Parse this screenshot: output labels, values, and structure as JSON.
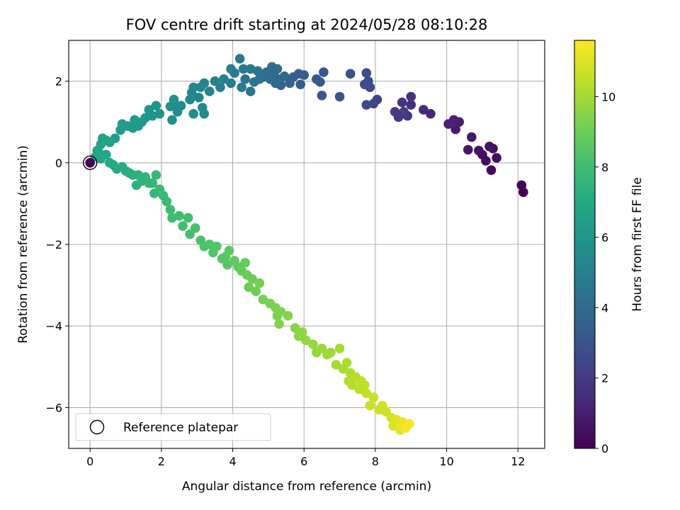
{
  "chart_data": {
    "type": "scatter",
    "title": "FOV centre drift starting at 2024/05/28 08:10:28",
    "xlabel": "Angular distance from reference (arcmin)",
    "ylabel": "Rotation from reference (arcmin)",
    "xlim": [
      -0.6,
      12.75
    ],
    "ylim": [
      -7.0,
      3.0
    ],
    "xticks": [
      0,
      2,
      4,
      6,
      8,
      10,
      12
    ],
    "yticks": [
      -6,
      -4,
      -2,
      0,
      2
    ],
    "grid": true,
    "legend": {
      "placement": "lower-left",
      "entries": [
        "Reference platepar"
      ]
    },
    "reference_point": {
      "x": 0,
      "y": 0,
      "label": "Reference platepar"
    },
    "colorbar": {
      "label": "Hours from first FF file",
      "colormap": "viridis",
      "range": [
        0,
        11.6
      ],
      "ticks": [
        0,
        2,
        4,
        6,
        8,
        10
      ]
    },
    "series": [
      {
        "points": [
          [
            12.15,
            -0.72,
            0.0
          ],
          [
            12.1,
            -0.55,
            0.1
          ],
          [
            11.25,
            -0.18,
            0.3
          ],
          [
            11.1,
            0.05,
            0.35
          ],
          [
            11.4,
            0.12,
            0.4
          ],
          [
            11.0,
            0.2,
            0.45
          ],
          [
            11.3,
            0.35,
            0.5
          ],
          [
            11.2,
            0.4,
            0.55
          ],
          [
            10.9,
            0.3,
            0.6
          ],
          [
            10.6,
            0.32,
            0.7
          ],
          [
            10.7,
            0.63,
            0.8
          ],
          [
            10.25,
            0.82,
            0.9
          ],
          [
            10.35,
            1.0,
            1.0
          ],
          [
            10.2,
            1.05,
            1.05
          ],
          [
            10.05,
            0.95,
            1.1
          ],
          [
            9.55,
            1.2,
            1.3
          ],
          [
            9.35,
            1.3,
            1.4
          ],
          [
            9.0,
            1.42,
            1.6
          ],
          [
            9.0,
            1.62,
            1.7
          ],
          [
            8.75,
            1.48,
            1.8
          ],
          [
            8.9,
            1.15,
            1.9
          ],
          [
            8.65,
            1.12,
            2.0
          ],
          [
            8.55,
            1.25,
            2.1
          ],
          [
            8.8,
            1.25,
            2.15
          ],
          [
            8.05,
            1.55,
            2.3
          ],
          [
            7.95,
            1.45,
            2.4
          ],
          [
            7.75,
            1.42,
            2.5
          ],
          [
            7.85,
            1.85,
            2.55
          ],
          [
            7.8,
            2.0,
            2.6
          ],
          [
            7.75,
            2.2,
            2.7
          ],
          [
            7.7,
            1.92,
            2.75
          ],
          [
            7.3,
            2.18,
            2.9
          ],
          [
            7.0,
            1.62,
            3.0
          ],
          [
            6.55,
            2.22,
            3.1
          ],
          [
            6.45,
            1.98,
            3.15
          ],
          [
            6.5,
            1.65,
            3.2
          ],
          [
            6.35,
            2.05,
            3.25
          ],
          [
            5.85,
            2.18,
            3.4
          ],
          [
            5.9,
            1.92,
            3.45
          ],
          [
            6.0,
            2.15,
            3.5
          ],
          [
            5.7,
            2.1,
            3.6
          ],
          [
            5.6,
            1.95,
            3.7
          ],
          [
            5.35,
            1.9,
            3.8
          ],
          [
            5.3,
            2.05,
            3.85
          ],
          [
            5.45,
            2.12,
            3.9
          ],
          [
            5.2,
            1.95,
            4.0
          ],
          [
            5.15,
            2.2,
            4.05
          ],
          [
            5.1,
            2.35,
            4.1
          ],
          [
            5.25,
            2.3,
            4.15
          ],
          [
            5.05,
            2.05,
            4.2
          ],
          [
            4.95,
            2.22,
            4.25
          ],
          [
            4.85,
            2.1,
            4.3
          ],
          [
            4.75,
            2.05,
            4.35
          ],
          [
            4.7,
            2.25,
            4.4
          ],
          [
            4.6,
            1.98,
            4.45
          ],
          [
            4.5,
            1.75,
            4.5
          ],
          [
            4.35,
            2.05,
            4.55
          ],
          [
            4.5,
            2.3,
            4.6
          ],
          [
            4.3,
            2.3,
            4.65
          ],
          [
            4.2,
            2.55,
            4.7
          ],
          [
            4.25,
            1.85,
            4.75
          ],
          [
            4.05,
            2.2,
            4.8
          ],
          [
            3.95,
            1.95,
            4.85
          ],
          [
            3.95,
            2.3,
            4.9
          ],
          [
            3.75,
            2.05,
            4.95
          ],
          [
            3.65,
            1.85,
            5.0
          ],
          [
            3.5,
            2.0,
            5.05
          ],
          [
            3.35,
            1.75,
            5.1
          ],
          [
            3.2,
            1.95,
            5.15
          ],
          [
            3.1,
            1.85,
            5.2
          ],
          [
            3.05,
            1.6,
            5.25
          ],
          [
            2.9,
            1.85,
            5.3
          ],
          [
            2.85,
            1.72,
            5.35
          ],
          [
            2.8,
            1.55,
            5.4
          ],
          [
            3.15,
            1.35,
            5.45
          ],
          [
            3.2,
            1.2,
            5.5
          ],
          [
            2.9,
            1.2,
            5.55
          ],
          [
            2.55,
            1.4,
            5.6
          ],
          [
            2.35,
            1.45,
            5.65
          ],
          [
            2.45,
            1.25,
            5.7
          ],
          [
            2.25,
            1.38,
            5.75
          ],
          [
            2.35,
            1.55,
            5.8
          ],
          [
            2.3,
            1.05,
            5.85
          ],
          [
            1.95,
            1.2,
            5.9
          ],
          [
            1.85,
            1.4,
            5.95
          ],
          [
            1.75,
            1.15,
            6.0
          ],
          [
            1.65,
            1.3,
            6.05
          ],
          [
            1.55,
            1.1,
            6.1
          ],
          [
            1.45,
            1.0,
            6.15
          ],
          [
            1.35,
            0.9,
            6.2
          ],
          [
            1.25,
            1.05,
            6.25
          ],
          [
            1.2,
            0.85,
            6.3
          ],
          [
            1.05,
            0.9,
            6.35
          ],
          [
            0.9,
            0.95,
            6.4
          ],
          [
            0.85,
            0.8,
            6.45
          ],
          [
            0.7,
            0.6,
            6.5
          ],
          [
            0.55,
            0.5,
            6.55
          ],
          [
            0.45,
            0.55,
            6.6
          ],
          [
            0.3,
            0.45,
            6.65
          ],
          [
            0.35,
            0.6,
            6.7
          ],
          [
            0.2,
            0.3,
            6.75
          ],
          [
            0.15,
            0.15,
            6.8
          ],
          [
            0.3,
            0.1,
            6.85
          ],
          [
            0.25,
            0.25,
            6.9
          ],
          [
            0.45,
            0.2,
            6.95
          ],
          [
            0.55,
            0.0,
            7.0
          ],
          [
            0.65,
            -0.05,
            7.05
          ],
          [
            0.75,
            -0.15,
            7.1
          ],
          [
            0.9,
            -0.1,
            7.15
          ],
          [
            1.0,
            -0.2,
            7.2
          ],
          [
            1.1,
            -0.25,
            7.25
          ],
          [
            1.2,
            -0.3,
            7.3
          ],
          [
            1.35,
            -0.3,
            7.35
          ],
          [
            1.3,
            -0.55,
            7.4
          ],
          [
            1.45,
            -0.45,
            7.45
          ],
          [
            1.55,
            -0.35,
            7.5
          ],
          [
            1.65,
            -0.5,
            7.55
          ],
          [
            1.75,
            -0.5,
            7.6
          ],
          [
            1.8,
            -0.75,
            7.65
          ],
          [
            1.85,
            -0.3,
            7.7
          ],
          [
            1.95,
            -0.65,
            7.75
          ],
          [
            2.05,
            -0.8,
            7.8
          ],
          [
            2.15,
            -0.95,
            7.85
          ],
          [
            2.25,
            -1.15,
            7.9
          ],
          [
            2.3,
            -1.35,
            7.95
          ],
          [
            2.5,
            -1.3,
            8.0
          ],
          [
            2.6,
            -1.55,
            8.05
          ],
          [
            2.75,
            -1.35,
            8.1
          ],
          [
            2.8,
            -1.75,
            8.15
          ],
          [
            2.95,
            -1.6,
            8.2
          ],
          [
            3.1,
            -1.9,
            8.25
          ],
          [
            3.2,
            -2.05,
            8.3
          ],
          [
            3.35,
            -2.0,
            8.35
          ],
          [
            3.45,
            -2.2,
            8.4
          ],
          [
            3.55,
            -2.05,
            8.45
          ],
          [
            3.7,
            -2.35,
            8.5
          ],
          [
            3.8,
            -2.3,
            8.55
          ],
          [
            3.85,
            -2.5,
            8.6
          ],
          [
            3.9,
            -2.15,
            8.65
          ],
          [
            4.05,
            -2.4,
            8.7
          ],
          [
            4.15,
            -2.55,
            8.75
          ],
          [
            4.25,
            -2.65,
            8.8
          ],
          [
            4.35,
            -2.45,
            8.85
          ],
          [
            4.4,
            -2.75,
            8.9
          ],
          [
            4.55,
            -2.85,
            8.95
          ],
          [
            4.45,
            -3.05,
            9.0
          ],
          [
            4.65,
            -3.15,
            9.05
          ],
          [
            4.75,
            -2.95,
            9.1
          ],
          [
            4.85,
            -3.35,
            9.15
          ],
          [
            5.05,
            -3.45,
            9.2
          ],
          [
            5.2,
            -3.55,
            9.25
          ],
          [
            5.25,
            -3.75,
            9.3
          ],
          [
            5.35,
            -3.65,
            9.35
          ],
          [
            5.3,
            -3.95,
            9.4
          ],
          [
            5.55,
            -3.75,
            9.45
          ],
          [
            5.75,
            -4.05,
            9.5
          ],
          [
            5.85,
            -4.25,
            9.6
          ],
          [
            5.95,
            -4.15,
            9.65
          ],
          [
            6.05,
            -4.35,
            9.7
          ],
          [
            6.25,
            -4.45,
            9.75
          ],
          [
            6.35,
            -4.65,
            9.8
          ],
          [
            6.5,
            -4.55,
            9.85
          ],
          [
            6.65,
            -4.7,
            9.9
          ],
          [
            6.75,
            -4.65,
            9.95
          ],
          [
            6.9,
            -4.95,
            10.0
          ],
          [
            7.0,
            -4.55,
            10.05
          ],
          [
            7.1,
            -5.05,
            10.1
          ],
          [
            7.2,
            -4.9,
            10.15
          ],
          [
            7.3,
            -5.15,
            10.2
          ],
          [
            7.25,
            -5.35,
            10.25
          ],
          [
            7.35,
            -5.45,
            10.3
          ],
          [
            7.45,
            -5.25,
            10.35
          ],
          [
            7.55,
            -5.55,
            10.4
          ],
          [
            7.6,
            -5.35,
            10.45
          ],
          [
            7.7,
            -5.45,
            10.5
          ],
          [
            7.75,
            -5.65,
            10.55
          ],
          [
            7.85,
            -5.95,
            10.6
          ],
          [
            7.95,
            -5.75,
            10.65
          ],
          [
            8.1,
            -6.05,
            10.7
          ],
          [
            8.2,
            -5.95,
            10.75
          ],
          [
            8.3,
            -6.1,
            10.8
          ],
          [
            8.45,
            -6.25,
            10.9
          ],
          [
            8.5,
            -6.45,
            11.0
          ],
          [
            8.6,
            -6.3,
            11.1
          ],
          [
            8.7,
            -6.55,
            11.2
          ],
          [
            8.75,
            -6.35,
            11.3
          ],
          [
            8.85,
            -6.5,
            11.4
          ],
          [
            8.95,
            -6.4,
            11.5
          ]
        ]
      }
    ]
  }
}
